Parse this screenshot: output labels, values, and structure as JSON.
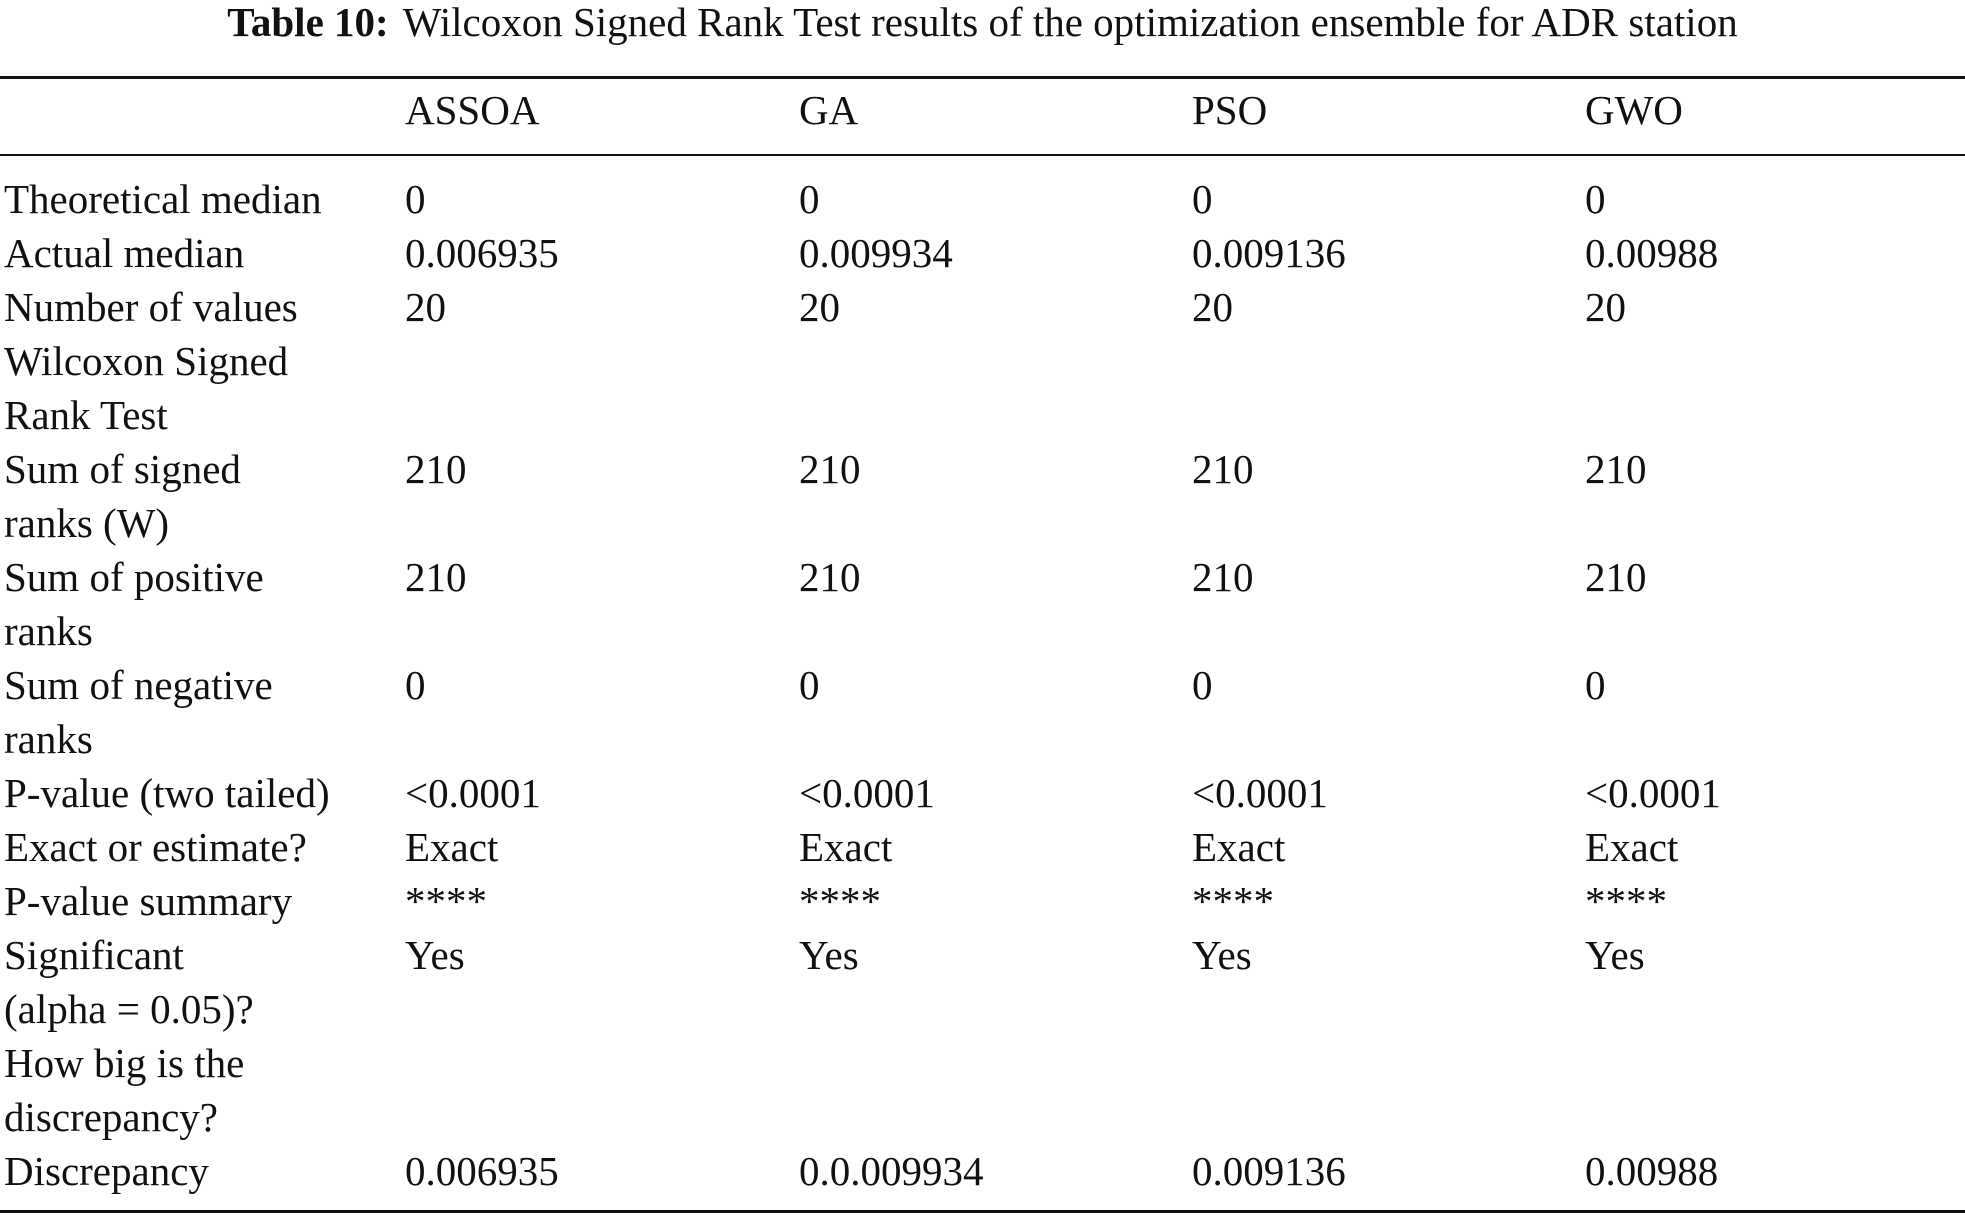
{
  "caption": {
    "label": "Table 10:",
    "text": "Wilcoxon Signed Rank Test results of the optimization ensemble for ADR station"
  },
  "table": {
    "columns": [
      "ASSOA",
      "GA",
      "PSO",
      "GWO"
    ],
    "rows": [
      {
        "label": [
          "Theoretical median"
        ],
        "values": [
          "0",
          "0",
          "0",
          "0"
        ]
      },
      {
        "label": [
          "Actual median"
        ],
        "values": [
          "0.006935",
          "0.009934",
          "0.009136",
          "0.00988"
        ]
      },
      {
        "label": [
          "Number of values"
        ],
        "values": [
          "20",
          "20",
          "20",
          "20"
        ]
      },
      {
        "label": [
          "Wilcoxon Signed",
          "Rank Test"
        ],
        "values": [
          "",
          "",
          "",
          ""
        ]
      },
      {
        "label": [
          "Sum of signed",
          "ranks (W)"
        ],
        "values": [
          "210",
          "210",
          "210",
          "210"
        ]
      },
      {
        "label": [
          "Sum of positive",
          "ranks"
        ],
        "values": [
          "210",
          "210",
          "210",
          "210"
        ]
      },
      {
        "label": [
          "Sum of negative",
          "ranks"
        ],
        "values": [
          "0",
          "0",
          "0",
          "0"
        ]
      },
      {
        "label": [
          "P-value (two tailed)"
        ],
        "values": [
          "<0.0001",
          "<0.0001",
          "<0.0001",
          "<0.0001"
        ]
      },
      {
        "label": [
          "Exact or estimate?"
        ],
        "values": [
          "Exact",
          "Exact",
          "Exact",
          "Exact"
        ]
      },
      {
        "label": [
          "P-value summary"
        ],
        "values": [
          "****",
          "****",
          "****",
          "****"
        ]
      },
      {
        "label": [
          "Significant",
          "(alpha = 0.05)?"
        ],
        "values": [
          "Yes",
          "Yes",
          "Yes",
          "Yes"
        ]
      },
      {
        "label": [
          "How big is the",
          "discrepancy?"
        ],
        "values": [
          "",
          "",
          "",
          ""
        ]
      },
      {
        "label": [
          "Discrepancy"
        ],
        "values": [
          "0.006935",
          "0.0.009934",
          "0.009136",
          "0.00988"
        ]
      }
    ]
  }
}
